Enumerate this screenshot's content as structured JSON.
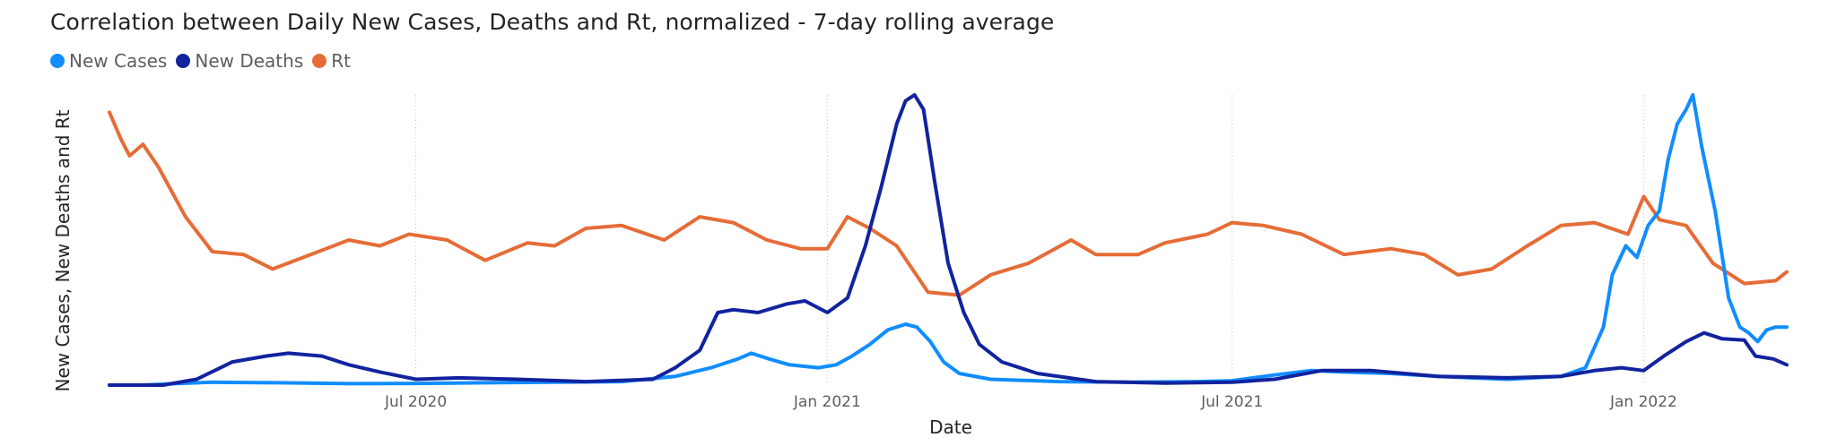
{
  "chart_data": {
    "type": "line",
    "title": "Correlation between Daily New Cases, Deaths and Rt, normalized - 7-day rolling average",
    "xlabel": "Date",
    "ylabel": "New Cases, New Deaths and Rt",
    "x_axis": {
      "min": "2020-02-15",
      "max": "2022-03-10",
      "ticks": [
        "2020-07-01",
        "2021-01-01",
        "2021-07-01",
        "2022-01-01"
      ],
      "tick_labels": [
        "Jul 2020",
        "Jan 2021",
        "Jul 2021",
        "Jan 2022"
      ]
    },
    "ylim": [
      0,
      1
    ],
    "y_ticks_shown": false,
    "grid": "vertical dotted lines at x ticks",
    "legend_position": "top-left",
    "series": [
      {
        "name": "New Cases",
        "color": "#118DFF",
        "points": [
          [
            "2020-02-15",
            0.0
          ],
          [
            "2020-03-01",
            0.0
          ],
          [
            "2020-03-15",
            0.005
          ],
          [
            "2020-04-01",
            0.01
          ],
          [
            "2020-05-01",
            0.008
          ],
          [
            "2020-06-01",
            0.005
          ],
          [
            "2020-07-01",
            0.006
          ],
          [
            "2020-08-01",
            0.008
          ],
          [
            "2020-09-01",
            0.01
          ],
          [
            "2020-10-01",
            0.012
          ],
          [
            "2020-10-25",
            0.03
          ],
          [
            "2020-11-10",
            0.06
          ],
          [
            "2020-11-22",
            0.09
          ],
          [
            "2020-11-28",
            0.11
          ],
          [
            "2020-12-06",
            0.09
          ],
          [
            "2020-12-15",
            0.07
          ],
          [
            "2020-12-28",
            0.06
          ],
          [
            "2021-01-05",
            0.07
          ],
          [
            "2021-01-12",
            0.1
          ],
          [
            "2021-01-20",
            0.14
          ],
          [
            "2021-01-28",
            0.19
          ],
          [
            "2021-02-05",
            0.21
          ],
          [
            "2021-02-10",
            0.2
          ],
          [
            "2021-02-16",
            0.15
          ],
          [
            "2021-02-22",
            0.08
          ],
          [
            "2021-03-01",
            0.04
          ],
          [
            "2021-03-15",
            0.02
          ],
          [
            "2021-04-15",
            0.012
          ],
          [
            "2021-05-15",
            0.01
          ],
          [
            "2021-06-15",
            0.012
          ],
          [
            "2021-07-01",
            0.015
          ],
          [
            "2021-07-20",
            0.035
          ],
          [
            "2021-08-05",
            0.05
          ],
          [
            "2021-08-20",
            0.045
          ],
          [
            "2021-09-10",
            0.04
          ],
          [
            "2021-10-01",
            0.03
          ],
          [
            "2021-11-01",
            0.02
          ],
          [
            "2021-11-25",
            0.03
          ],
          [
            "2021-12-06",
            0.06
          ],
          [
            "2021-12-14",
            0.2
          ],
          [
            "2021-12-18",
            0.38
          ],
          [
            "2021-12-24",
            0.48
          ],
          [
            "2021-12-29",
            0.44
          ],
          [
            "2022-01-03",
            0.55
          ],
          [
            "2022-01-08",
            0.6
          ],
          [
            "2022-01-12",
            0.78
          ],
          [
            "2022-01-16",
            0.9
          ],
          [
            "2022-01-20",
            0.95
          ],
          [
            "2022-01-23",
            1.0
          ],
          [
            "2022-01-27",
            0.82
          ],
          [
            "2022-02-02",
            0.6
          ],
          [
            "2022-02-08",
            0.3
          ],
          [
            "2022-02-13",
            0.2
          ],
          [
            "2022-02-17",
            0.18
          ],
          [
            "2022-02-21",
            0.15
          ],
          [
            "2022-02-25",
            0.19
          ],
          [
            "2022-03-01",
            0.2
          ],
          [
            "2022-03-06",
            0.2
          ]
        ]
      },
      {
        "name": "New Deaths",
        "color": "#12239E",
        "points": [
          [
            "2020-02-15",
            0.0
          ],
          [
            "2020-03-10",
            0.0
          ],
          [
            "2020-03-25",
            0.02
          ],
          [
            "2020-04-10",
            0.08
          ],
          [
            "2020-04-25",
            0.1
          ],
          [
            "2020-05-05",
            0.11
          ],
          [
            "2020-05-20",
            0.1
          ],
          [
            "2020-06-01",
            0.07
          ],
          [
            "2020-06-15",
            0.045
          ],
          [
            "2020-07-01",
            0.02
          ],
          [
            "2020-07-20",
            0.025
          ],
          [
            "2020-08-15",
            0.02
          ],
          [
            "2020-09-15",
            0.012
          ],
          [
            "2020-10-15",
            0.02
          ],
          [
            "2020-10-25",
            0.06
          ],
          [
            "2020-11-05",
            0.12
          ],
          [
            "2020-11-13",
            0.25
          ],
          [
            "2020-11-20",
            0.26
          ],
          [
            "2020-12-01",
            0.25
          ],
          [
            "2020-12-14",
            0.28
          ],
          [
            "2020-12-22",
            0.29
          ],
          [
            "2021-01-01",
            0.25
          ],
          [
            "2021-01-10",
            0.3
          ],
          [
            "2021-01-18",
            0.48
          ],
          [
            "2021-01-25",
            0.68
          ],
          [
            "2021-02-01",
            0.9
          ],
          [
            "2021-02-05",
            0.98
          ],
          [
            "2021-02-09",
            1.0
          ],
          [
            "2021-02-13",
            0.95
          ],
          [
            "2021-02-18",
            0.7
          ],
          [
            "2021-02-24",
            0.42
          ],
          [
            "2021-03-03",
            0.25
          ],
          [
            "2021-03-10",
            0.14
          ],
          [
            "2021-03-20",
            0.08
          ],
          [
            "2021-04-05",
            0.04
          ],
          [
            "2021-05-01",
            0.012
          ],
          [
            "2021-06-01",
            0.007
          ],
          [
            "2021-07-01",
            0.01
          ],
          [
            "2021-07-20",
            0.02
          ],
          [
            "2021-08-10",
            0.05
          ],
          [
            "2021-09-01",
            0.05
          ],
          [
            "2021-10-01",
            0.03
          ],
          [
            "2021-11-01",
            0.025
          ],
          [
            "2021-11-25",
            0.03
          ],
          [
            "2021-12-10",
            0.05
          ],
          [
            "2021-12-22",
            0.06
          ],
          [
            "2022-01-01",
            0.05
          ],
          [
            "2022-01-10",
            0.1
          ],
          [
            "2022-01-20",
            0.15
          ],
          [
            "2022-01-28",
            0.18
          ],
          [
            "2022-02-05",
            0.16
          ],
          [
            "2022-02-15",
            0.155
          ],
          [
            "2022-02-20",
            0.1
          ],
          [
            "2022-02-28",
            0.09
          ],
          [
            "2022-03-06",
            0.07
          ]
        ]
      },
      {
        "name": "Rt",
        "color": "#E66C37",
        "points": [
          [
            "2020-02-15",
            0.94
          ],
          [
            "2020-02-20",
            0.85
          ],
          [
            "2020-02-24",
            0.79
          ],
          [
            "2020-03-01",
            0.83
          ],
          [
            "2020-03-08",
            0.75
          ],
          [
            "2020-03-20",
            0.58
          ],
          [
            "2020-04-01",
            0.46
          ],
          [
            "2020-04-15",
            0.45
          ],
          [
            "2020-04-28",
            0.4
          ],
          [
            "2020-05-15",
            0.45
          ],
          [
            "2020-06-01",
            0.5
          ],
          [
            "2020-06-15",
            0.48
          ],
          [
            "2020-06-28",
            0.52
          ],
          [
            "2020-07-15",
            0.5
          ],
          [
            "2020-08-01",
            0.43
          ],
          [
            "2020-08-20",
            0.49
          ],
          [
            "2020-09-01",
            0.48
          ],
          [
            "2020-09-15",
            0.54
          ],
          [
            "2020-10-01",
            0.55
          ],
          [
            "2020-10-20",
            0.5
          ],
          [
            "2020-11-05",
            0.58
          ],
          [
            "2020-11-20",
            0.56
          ],
          [
            "2020-12-05",
            0.5
          ],
          [
            "2020-12-20",
            0.47
          ],
          [
            "2021-01-01",
            0.47
          ],
          [
            "2021-01-10",
            0.58
          ],
          [
            "2021-01-20",
            0.54
          ],
          [
            "2021-02-01",
            0.48
          ],
          [
            "2021-02-15",
            0.32
          ],
          [
            "2021-03-01",
            0.31
          ],
          [
            "2021-03-15",
            0.38
          ],
          [
            "2021-04-01",
            0.42
          ],
          [
            "2021-04-20",
            0.5
          ],
          [
            "2021-05-01",
            0.45
          ],
          [
            "2021-05-20",
            0.45
          ],
          [
            "2021-06-01",
            0.49
          ],
          [
            "2021-06-20",
            0.52
          ],
          [
            "2021-07-01",
            0.56
          ],
          [
            "2021-07-15",
            0.55
          ],
          [
            "2021-08-01",
            0.52
          ],
          [
            "2021-08-20",
            0.45
          ],
          [
            "2021-09-10",
            0.47
          ],
          [
            "2021-09-25",
            0.45
          ],
          [
            "2021-10-10",
            0.38
          ],
          [
            "2021-10-25",
            0.4
          ],
          [
            "2021-11-10",
            0.48
          ],
          [
            "2021-11-25",
            0.55
          ],
          [
            "2021-12-10",
            0.56
          ],
          [
            "2021-12-25",
            0.52
          ],
          [
            "2022-01-01",
            0.65
          ],
          [
            "2022-01-08",
            0.57
          ],
          [
            "2022-01-20",
            0.55
          ],
          [
            "2022-02-01",
            0.42
          ],
          [
            "2022-02-15",
            0.35
          ],
          [
            "2022-03-01",
            0.36
          ],
          [
            "2022-03-06",
            0.39
          ]
        ]
      }
    ]
  }
}
